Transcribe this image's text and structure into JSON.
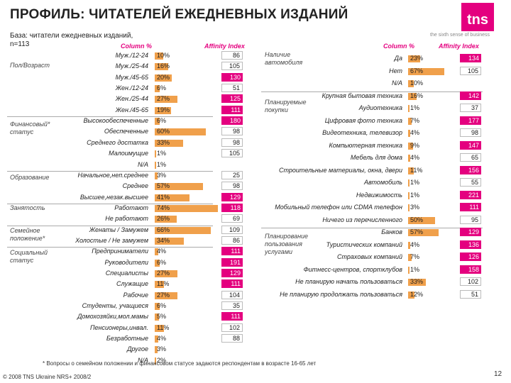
{
  "title": "ПРОФИЛЬ: ЧИТАТЕЛЕЙ ЕЖЕДНЕВНЫХ ИЗДАНИЙ",
  "base_line1": "База: читатели ежедневных изданий,",
  "base_line2": "n=113",
  "logo": "tns",
  "slogan": "the sixth sense of business",
  "col_pct": "Column %",
  "col_aff": "Affinity Index",
  "footnote": "* Вопросы о семейном положении и финансовом статусе задаются респондентам в возрасте 16-65 лет",
  "copyright": "© 2008 TNS Ukraine NRS+ 2008/2",
  "page_num": "12",
  "colors": {
    "bar": "#f0a04b",
    "accent": "#e4007f"
  },
  "chart_data": [
    {
      "type": "bar",
      "groups": [
        "Пол/Возраст",
        "Финансовый* статус",
        "Образование",
        "Занятость",
        "Семейное положение*",
        "Социальный статус"
      ],
      "rows": [
        {
          "group": "Пол/Возраст",
          "label": "Муж./12-24",
          "value": 10,
          "index": 86
        },
        {
          "group": "Пол/Возраст",
          "label": "Муж./25-44",
          "value": 16,
          "index": 105
        },
        {
          "group": "Пол/Возраст",
          "label": "Муж./45-65",
          "value": 20,
          "index": 130
        },
        {
          "group": "Пол/Возраст",
          "label": "Жен./12-24",
          "value": 6,
          "index": 51
        },
        {
          "group": "Пол/Возраст",
          "label": "Жен./25-44",
          "value": 27,
          "index": 125
        },
        {
          "group": "Пол/Возраст",
          "label": "Жен./45-65",
          "value": 19,
          "index": 111
        },
        {
          "group": "Финансовый* статус",
          "label": "Высокообеспеченные",
          "value": 6,
          "index": 180
        },
        {
          "group": "Финансовый* статус",
          "label": "Обеспеченные",
          "value": 60,
          "index": 98
        },
        {
          "group": "Финансовый* статус",
          "label": "Среднего достатка",
          "value": 33,
          "index": 98
        },
        {
          "group": "Финансовый* статус",
          "label": "Малоимущие",
          "value": 1,
          "index": 105
        },
        {
          "group": "Финансовый* статус",
          "label": "N/A",
          "value": 1,
          "index": null
        },
        {
          "group": "Образование",
          "label": "Начальное,неп.среднее",
          "value": 3,
          "index": 25
        },
        {
          "group": "Образование",
          "label": "Среднее",
          "value": 57,
          "index": 98
        },
        {
          "group": "Образование",
          "label": "Высшее,незак.высшее",
          "value": 41,
          "index": 129
        },
        {
          "group": "Занятость",
          "label": "Работают",
          "value": 74,
          "index": 118
        },
        {
          "group": "Занятость",
          "label": "Не работают",
          "value": 26,
          "index": 69
        },
        {
          "group": "Семейное положение*",
          "label": "Женаты / Замужем",
          "value": 66,
          "index": 109
        },
        {
          "group": "Семейное положение*",
          "label": "Холостые / Не замужем",
          "value": 34,
          "index": 86
        },
        {
          "group": "Социальный статус",
          "label": "Предприниматели",
          "value": 4,
          "index": 111
        },
        {
          "group": "Социальный статус",
          "label": "Руководители",
          "value": 6,
          "index": 191
        },
        {
          "group": "Социальный статус",
          "label": "Специалисты",
          "value": 27,
          "index": 129
        },
        {
          "group": "Социальный статус",
          "label": "Служащие",
          "value": 11,
          "index": 111
        },
        {
          "group": "Социальный статус",
          "label": "Рабочие",
          "value": 27,
          "index": 104
        },
        {
          "group": "Социальный статус",
          "label": "Студенты, учащиеся",
          "value": 6,
          "index": 35
        },
        {
          "group": "Социальный статус",
          "label": "Домохозяйки,мол.мамы",
          "value": 5,
          "index": 111
        },
        {
          "group": "Социальный статус",
          "label": "Пенсионеры,инвал.",
          "value": 11,
          "index": 102
        },
        {
          "group": "Социальный статус",
          "label": "Безработные",
          "value": 4,
          "index": 88
        },
        {
          "group": "Социальный статус",
          "label": "Другое",
          "value": 3,
          "index": null
        },
        {
          "group": "Социальный статус",
          "label": "N/A",
          "value": 2,
          "index": null
        }
      ]
    },
    {
      "type": "bar",
      "groups": [
        "Наличие автомобиля",
        "Планируемые покупки",
        "Планирование пользования услугами"
      ],
      "rows": [
        {
          "group": "Наличие автомобиля",
          "label": "Да",
          "value": 23,
          "index": 134
        },
        {
          "group": "Наличие автомобиля",
          "label": "Нет",
          "value": 67,
          "index": 105
        },
        {
          "group": "Наличие автомобиля",
          "label": "N/A",
          "value": 10,
          "index": null
        },
        {
          "group": "Планируемые покупки",
          "label": "Крупная бытовая техника",
          "value": 16,
          "index": 142
        },
        {
          "group": "Планируемые покупки",
          "label": "Аудиотехника",
          "value": 1,
          "index": 37
        },
        {
          "group": "Планируемые покупки",
          "label": "Цифровая фото техника",
          "value": 7,
          "index": 177
        },
        {
          "group": "Планируемые покупки",
          "label": "Видеотехника, телевизор",
          "value": 4,
          "index": 98
        },
        {
          "group": "Планируемые покупки",
          "label": "Компьютерная техника",
          "value": 9,
          "index": 147
        },
        {
          "group": "Планируемые покупки",
          "label": "Мебель для дома",
          "value": 4,
          "index": 65
        },
        {
          "group": "Планируемые покупки",
          "label": "Строительные материалы, окна, двери",
          "value": 11,
          "index": 156
        },
        {
          "group": "Планируемые покупки",
          "label": "Автомобиль",
          "value": 1,
          "index": 55
        },
        {
          "group": "Планируемые покупки",
          "label": "Недвижимость",
          "value": 1,
          "index": 221
        },
        {
          "group": "Планируемые покупки",
          "label": "Мобильный телефон или CDMA телефон",
          "value": 3,
          "index": 111
        },
        {
          "group": "Планируемые покупки",
          "label": "Ничего из перечисленного",
          "value": 50,
          "index": 95
        },
        {
          "group": "Планирование пользования услугами",
          "label": "Банков",
          "value": 57,
          "index": 129
        },
        {
          "group": "Планирование пользования услугами",
          "label": "Туристических компаний",
          "value": 4,
          "index": 136
        },
        {
          "group": "Планирование пользования услугами",
          "label": "Страховых компаний",
          "value": 7,
          "index": 126
        },
        {
          "group": "Планирование пользования услугами",
          "label": "Фитнесс-центров, спортклубов",
          "value": 1,
          "index": 158
        },
        {
          "group": "Планирование пользования услугами",
          "label": "Не планирую начать пользоваться",
          "value": 33,
          "index": 102
        },
        {
          "group": "Планирование пользования услугами",
          "label": "Не планирую продолжать пользоваться",
          "value": 12,
          "index": 51
        }
      ]
    }
  ]
}
